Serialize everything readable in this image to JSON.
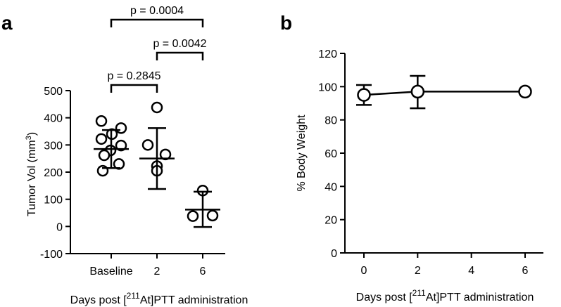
{
  "chart_data": [
    {
      "panel": "a",
      "type": "scatter",
      "title": "",
      "xlabel": {
        "prefix": "Days post [",
        "sup": "211",
        "suffix": "At]PTT administration"
      },
      "ylabel": {
        "prefix": "Tumor Vol (mm",
        "sup": "3",
        "suffix": ")"
      },
      "categories": [
        "Baseline",
        "2",
        "6"
      ],
      "ylim": [
        -100,
        500
      ],
      "yticks": [
        -100,
        0,
        100,
        200,
        300,
        400,
        500
      ],
      "points": [
        [
          388,
          362,
          340,
          322,
          298,
          280,
          262,
          230,
          205
        ],
        [
          438,
          300,
          265,
          222,
          205
        ],
        [
          132,
          38,
          40
        ]
      ],
      "mean": [
        285,
        250,
        62
      ],
      "sd_upper": [
        355,
        362,
        128
      ],
      "sd_lower": [
        215,
        138,
        -2
      ],
      "comparisons": [
        {
          "from": 0,
          "to": 2,
          "label": "p = 0.0004"
        },
        {
          "from": 1,
          "to": 2,
          "label": "p = 0.0042"
        },
        {
          "from": 0,
          "to": 1,
          "label": "p = 0.2845"
        }
      ]
    },
    {
      "panel": "b",
      "type": "line",
      "title": "",
      "xlabel": {
        "prefix": "Days post [",
        "sup": "211",
        "suffix": "At]PTT administration"
      },
      "ylabel": "% Body Weight",
      "xlim": [
        -0.5,
        6.5
      ],
      "xticks": [
        0,
        2,
        4,
        6
      ],
      "ylim": [
        0,
        120
      ],
      "yticks": [
        0,
        20,
        40,
        60,
        80,
        100,
        120
      ],
      "x": [
        0,
        2,
        6
      ],
      "y": [
        95,
        97,
        97
      ],
      "sd_upper": [
        101,
        106.5,
        97
      ],
      "sd_lower": [
        89,
        87,
        97
      ]
    }
  ]
}
